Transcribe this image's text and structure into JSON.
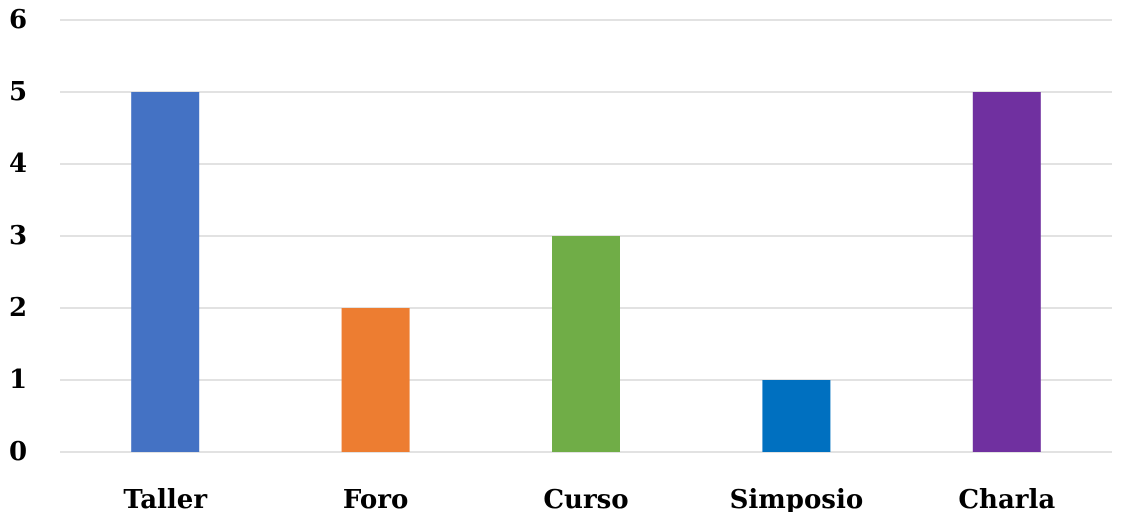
{
  "chart_data": {
    "type": "bar",
    "categories": [
      "Taller",
      "Foro",
      "Curso",
      "Simposio",
      "Charla"
    ],
    "values": [
      5,
      2,
      3,
      1,
      5
    ],
    "bar_colors": [
      "#4472c4",
      "#ed7d31",
      "#70ad47",
      "#0070c0",
      "#7030a0"
    ],
    "title": "",
    "xlabel": "",
    "ylabel": "",
    "ylim": [
      0,
      6
    ],
    "yticks": [
      "0",
      "1",
      "2",
      "3",
      "4",
      "5",
      "6"
    ],
    "grid": true,
    "legend": "none"
  }
}
